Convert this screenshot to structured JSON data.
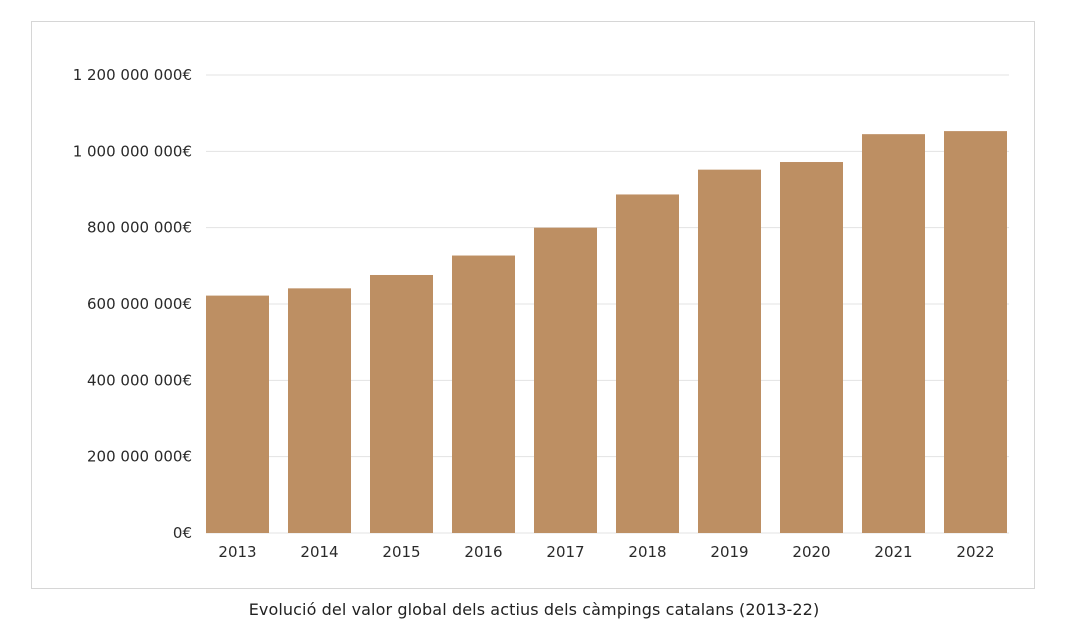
{
  "caption": "Evolució del valor global dels actius dels càmpings catalans (2013-22)",
  "colors": {
    "bar": "#bd8f63",
    "grid": "#e3e3e3",
    "axis_text": "#2a2a2a"
  },
  "chart_data": {
    "type": "bar",
    "categories": [
      "2013",
      "2014",
      "2015",
      "2016",
      "2017",
      "2018",
      "2019",
      "2020",
      "2021",
      "2022"
    ],
    "values": [
      622000000,
      641000000,
      676000000,
      727000000,
      800000000,
      887000000,
      952000000,
      972000000,
      1045000000,
      1053000000
    ],
    "yticks": [
      0,
      200000000,
      400000000,
      600000000,
      800000000,
      1000000000,
      1200000000
    ],
    "ytick_labels": [
      "0€",
      "200 000 000€",
      "400 000 000€",
      "600 000 000€",
      "800 000 000€",
      "1 000 000 000€",
      "1 200 000 000€"
    ],
    "ylim": [
      0,
      1200000000
    ],
    "grid": true,
    "legend": "none"
  }
}
